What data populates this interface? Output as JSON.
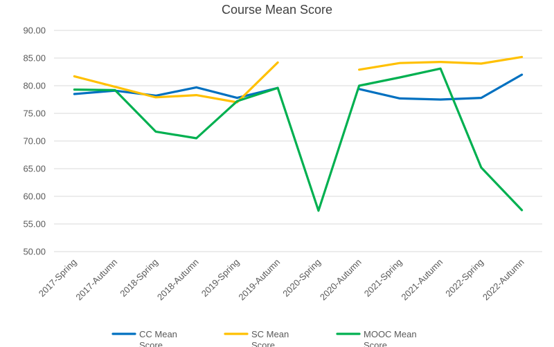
{
  "chart_data": {
    "type": "line",
    "title": "Course Mean Score",
    "xlabel": "",
    "ylabel": "",
    "ylim": [
      50,
      90
    ],
    "yticks": [
      "50.00",
      "55.00",
      "60.00",
      "65.00",
      "70.00",
      "75.00",
      "80.00",
      "85.00",
      "90.00"
    ],
    "grid": true,
    "legend_position": "bottom",
    "categories": [
      "2017-Spring",
      "2017-Autumn",
      "2018-Spring",
      "2018-Autumn",
      "2019-Spring",
      "2019-Autumn",
      "2020-Spring",
      "2020-Autumn",
      "2021-Spring",
      "2021-Autumn",
      "2022-Spring",
      "2022-Autumn"
    ],
    "series": [
      {
        "name": "CC Mean Score",
        "name_lines": [
          "CC Mean",
          "Score"
        ],
        "color": "#0070c0",
        "values": [
          78.5,
          79.1,
          78.2,
          79.7,
          77.8,
          79.6,
          null,
          79.4,
          77.7,
          77.5,
          77.8,
          82.0
        ]
      },
      {
        "name": "SC Mean Score",
        "name_lines": [
          "SC Mean",
          "Score"
        ],
        "color": "#ffc000",
        "values": [
          81.7,
          79.8,
          77.9,
          78.3,
          77.0,
          84.2,
          null,
          82.9,
          84.1,
          84.3,
          84.0,
          85.2
        ]
      },
      {
        "name": "MOOC Mean Score",
        "name_lines": [
          "MOOC Mean",
          "Score"
        ],
        "color": "#00b050",
        "values": [
          79.3,
          79.2,
          71.7,
          70.5,
          77.2,
          79.6,
          57.4,
          80.0,
          81.5,
          83.1,
          65.2,
          57.5
        ]
      }
    ]
  }
}
